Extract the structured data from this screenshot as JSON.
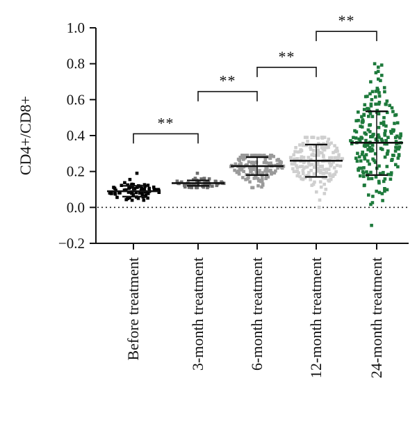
{
  "chart_data": {
    "type": "scatter",
    "title": "",
    "xlabel": "",
    "ylabel": "CD4+/CD8+",
    "ylim": [
      -0.2,
      1.0
    ],
    "yticks": [
      -0.2,
      0.0,
      0.2,
      0.4,
      0.6,
      0.8,
      1.0
    ],
    "ytick_labels": [
      "−0.2",
      "0.0",
      "0.2",
      "0.4",
      "0.6",
      "0.8",
      "1.0"
    ],
    "reference_line": {
      "y": 0.0,
      "style": "dotted"
    },
    "categories": [
      "Before treatment",
      "3-month treatment",
      "6-month treatment",
      "12-month treatment",
      "24-month treatment"
    ],
    "series": [
      {
        "category": "Before treatment",
        "mean": 0.09,
        "sd_low": 0.06,
        "sd_high": 0.12,
        "min": 0.04,
        "max": 0.19,
        "n": 70,
        "color": "#000000"
      },
      {
        "category": "3-month treatment",
        "mean": 0.135,
        "sd_low": 0.12,
        "sd_high": 0.15,
        "min": 0.11,
        "max": 0.19,
        "n": 55,
        "color": "#6e6e6e"
      },
      {
        "category": "6-month treatment",
        "mean": 0.23,
        "sd_low": 0.18,
        "sd_high": 0.28,
        "min": 0.11,
        "max": 0.29,
        "n": 150,
        "color": "#9a9a9a"
      },
      {
        "category": "12-month treatment",
        "mean": 0.26,
        "sd_low": 0.17,
        "sd_high": 0.35,
        "min": 0.0,
        "max": 0.39,
        "n": 170,
        "color": "#cfcfcf"
      },
      {
        "category": "24-month treatment",
        "mean": 0.36,
        "sd_low": 0.18,
        "sd_high": 0.535,
        "min": -0.1,
        "max": 0.8,
        "n": 220,
        "color": "#1e7a3c"
      }
    ],
    "comparisons": [
      {
        "from": "Before treatment",
        "to": "3-month treatment",
        "y": 0.41,
        "label": "**"
      },
      {
        "from": "3-month treatment",
        "to": "6-month treatment",
        "y": 0.645,
        "label": "**"
      },
      {
        "from": "6-month treatment",
        "to": "12-month treatment",
        "y": 0.78,
        "label": "**"
      },
      {
        "from": "12-month treatment",
        "to": "24-month treatment",
        "y": 0.98,
        "label": "**"
      }
    ],
    "grid": false,
    "legend": "none"
  }
}
